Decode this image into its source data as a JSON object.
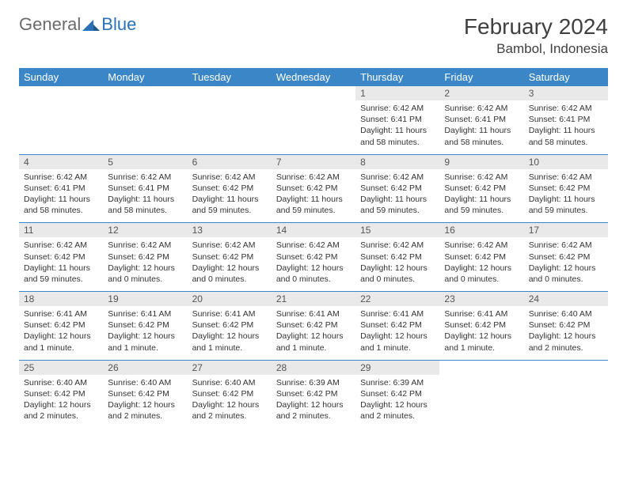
{
  "logo": {
    "general": "General",
    "blue": "Blue"
  },
  "title": {
    "month": "February 2024",
    "location": "Bambol, Indonesia"
  },
  "colors": {
    "header_bg": "#3b86c6",
    "header_text": "#ffffff",
    "daynum_bg": "#e9e9e9",
    "daynum_text": "#555555",
    "body_text": "#333333",
    "logo_gray": "#6b6b6b",
    "logo_blue": "#2a71b8"
  },
  "dow": [
    "Sunday",
    "Monday",
    "Tuesday",
    "Wednesday",
    "Thursday",
    "Friday",
    "Saturday"
  ],
  "weeks": [
    [
      null,
      null,
      null,
      null,
      {
        "n": "1",
        "sr": "6:42 AM",
        "ss": "6:41 PM",
        "dl": "11 hours and 58 minutes."
      },
      {
        "n": "2",
        "sr": "6:42 AM",
        "ss": "6:41 PM",
        "dl": "11 hours and 58 minutes."
      },
      {
        "n": "3",
        "sr": "6:42 AM",
        "ss": "6:41 PM",
        "dl": "11 hours and 58 minutes."
      }
    ],
    [
      {
        "n": "4",
        "sr": "6:42 AM",
        "ss": "6:41 PM",
        "dl": "11 hours and 58 minutes."
      },
      {
        "n": "5",
        "sr": "6:42 AM",
        "ss": "6:41 PM",
        "dl": "11 hours and 58 minutes."
      },
      {
        "n": "6",
        "sr": "6:42 AM",
        "ss": "6:42 PM",
        "dl": "11 hours and 59 minutes."
      },
      {
        "n": "7",
        "sr": "6:42 AM",
        "ss": "6:42 PM",
        "dl": "11 hours and 59 minutes."
      },
      {
        "n": "8",
        "sr": "6:42 AM",
        "ss": "6:42 PM",
        "dl": "11 hours and 59 minutes."
      },
      {
        "n": "9",
        "sr": "6:42 AM",
        "ss": "6:42 PM",
        "dl": "11 hours and 59 minutes."
      },
      {
        "n": "10",
        "sr": "6:42 AM",
        "ss": "6:42 PM",
        "dl": "11 hours and 59 minutes."
      }
    ],
    [
      {
        "n": "11",
        "sr": "6:42 AM",
        "ss": "6:42 PM",
        "dl": "11 hours and 59 minutes."
      },
      {
        "n": "12",
        "sr": "6:42 AM",
        "ss": "6:42 PM",
        "dl": "12 hours and 0 minutes."
      },
      {
        "n": "13",
        "sr": "6:42 AM",
        "ss": "6:42 PM",
        "dl": "12 hours and 0 minutes."
      },
      {
        "n": "14",
        "sr": "6:42 AM",
        "ss": "6:42 PM",
        "dl": "12 hours and 0 minutes."
      },
      {
        "n": "15",
        "sr": "6:42 AM",
        "ss": "6:42 PM",
        "dl": "12 hours and 0 minutes."
      },
      {
        "n": "16",
        "sr": "6:42 AM",
        "ss": "6:42 PM",
        "dl": "12 hours and 0 minutes."
      },
      {
        "n": "17",
        "sr": "6:42 AM",
        "ss": "6:42 PM",
        "dl": "12 hours and 0 minutes."
      }
    ],
    [
      {
        "n": "18",
        "sr": "6:41 AM",
        "ss": "6:42 PM",
        "dl": "12 hours and 1 minute."
      },
      {
        "n": "19",
        "sr": "6:41 AM",
        "ss": "6:42 PM",
        "dl": "12 hours and 1 minute."
      },
      {
        "n": "20",
        "sr": "6:41 AM",
        "ss": "6:42 PM",
        "dl": "12 hours and 1 minute."
      },
      {
        "n": "21",
        "sr": "6:41 AM",
        "ss": "6:42 PM",
        "dl": "12 hours and 1 minute."
      },
      {
        "n": "22",
        "sr": "6:41 AM",
        "ss": "6:42 PM",
        "dl": "12 hours and 1 minute."
      },
      {
        "n": "23",
        "sr": "6:41 AM",
        "ss": "6:42 PM",
        "dl": "12 hours and 1 minute."
      },
      {
        "n": "24",
        "sr": "6:40 AM",
        "ss": "6:42 PM",
        "dl": "12 hours and 2 minutes."
      }
    ],
    [
      {
        "n": "25",
        "sr": "6:40 AM",
        "ss": "6:42 PM",
        "dl": "12 hours and 2 minutes."
      },
      {
        "n": "26",
        "sr": "6:40 AM",
        "ss": "6:42 PM",
        "dl": "12 hours and 2 minutes."
      },
      {
        "n": "27",
        "sr": "6:40 AM",
        "ss": "6:42 PM",
        "dl": "12 hours and 2 minutes."
      },
      {
        "n": "28",
        "sr": "6:39 AM",
        "ss": "6:42 PM",
        "dl": "12 hours and 2 minutes."
      },
      {
        "n": "29",
        "sr": "6:39 AM",
        "ss": "6:42 PM",
        "dl": "12 hours and 2 minutes."
      },
      null,
      null
    ]
  ],
  "labels": {
    "sunrise": "Sunrise:",
    "sunset": "Sunset:",
    "daylight": "Daylight:"
  }
}
